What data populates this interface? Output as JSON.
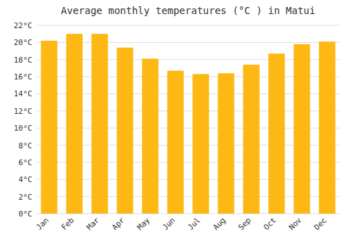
{
  "chart_data": {
    "type": "bar",
    "title": "Average monthly temperatures (°C ) in Matui",
    "categories": [
      "Jan",
      "Feb",
      "Mar",
      "Apr",
      "May",
      "Jun",
      "Jul",
      "Aug",
      "Sep",
      "Oct",
      "Nov",
      "Dec"
    ],
    "values": [
      20.2,
      21.0,
      21.0,
      19.4,
      18.1,
      16.7,
      16.3,
      16.4,
      17.4,
      18.7,
      19.8,
      20.1
    ],
    "color": "#FDB813",
    "ylim": [
      0,
      22
    ],
    "yticks": [
      {
        "value": 0,
        "label": "0°C"
      },
      {
        "value": 2,
        "label": "2°C"
      },
      {
        "value": 4,
        "label": "4°C"
      },
      {
        "value": 6,
        "label": "6°C"
      },
      {
        "value": 8,
        "label": "8°C"
      },
      {
        "value": 10,
        "label": "10°C"
      },
      {
        "value": 12,
        "label": "12°C"
      },
      {
        "value": 14,
        "label": "14°C"
      },
      {
        "value": 16,
        "label": "16°C"
      },
      {
        "value": 18,
        "label": "18°C"
      },
      {
        "value": 20,
        "label": "20°C"
      },
      {
        "value": 22,
        "label": "22°C"
      }
    ],
    "grid": true
  }
}
